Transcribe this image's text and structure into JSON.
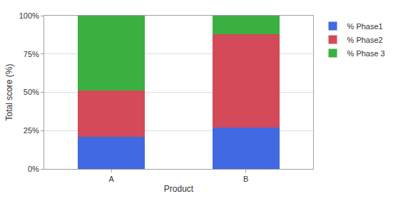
{
  "chart_data": {
    "type": "bar",
    "stacked": true,
    "grid": true,
    "legend": "upper right",
    "x_label": "Product",
    "y_label": "Total score (%)",
    "categories": [
      "A",
      "B"
    ],
    "series": [
      {
        "name": "% Phase1",
        "color": "#4169e1",
        "values": [
          21,
          27
        ]
      },
      {
        "name": "% Phase2",
        "color": "#d44a58",
        "values": [
          30,
          61
        ]
      },
      {
        "name": "% Phase 3",
        "color": "#3bb041",
        "values": [
          49,
          12
        ]
      }
    ],
    "ylim": [
      0,
      100
    ],
    "yticks": [
      {
        "value": 0,
        "label": "0%"
      },
      {
        "value": 25,
        "label": "25%"
      },
      {
        "value": 50,
        "label": "50%"
      },
      {
        "value": 75,
        "label": "75%"
      },
      {
        "value": 100,
        "label": "100%"
      }
    ]
  }
}
